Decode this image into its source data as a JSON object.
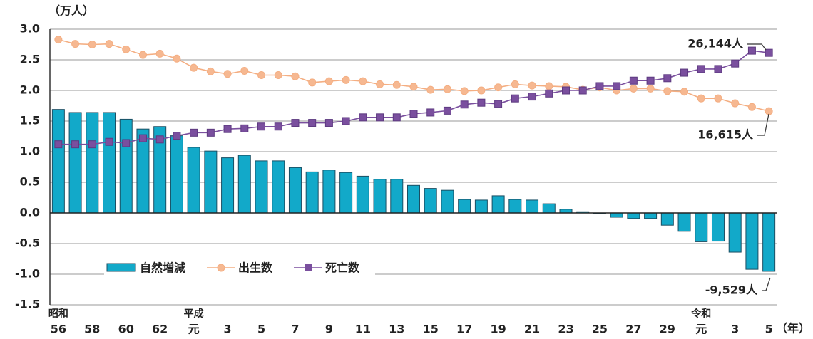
{
  "chart_data": {
    "type": "bar",
    "y_axis_label": "（万人）",
    "x_axis_label": "（年）",
    "categories": [
      "56",
      null,
      "58",
      null,
      "60",
      null,
      "62",
      null,
      "元",
      null,
      "3",
      null,
      "5",
      null,
      "7",
      null,
      "9",
      null,
      "11",
      null,
      "13",
      null,
      "15",
      null,
      "17",
      null,
      "19",
      null,
      "21",
      null,
      "23",
      null,
      "25",
      null,
      "27",
      null,
      "29",
      null,
      "元",
      null,
      "3",
      null,
      "5"
    ],
    "era_labels": [
      "昭和",
      null,
      null,
      null,
      null,
      null,
      null,
      null,
      "平成",
      null,
      null,
      null,
      null,
      null,
      null,
      null,
      null,
      null,
      null,
      null,
      null,
      null,
      null,
      null,
      null,
      null,
      null,
      null,
      null,
      null,
      null,
      null,
      null,
      null,
      null,
      null,
      null,
      null,
      "令和",
      null,
      null,
      null,
      null
    ],
    "ylim": [
      -1.5,
      3.0
    ],
    "yticks": [
      {
        "value": 3,
        "label": "3.0"
      },
      2.5,
      {
        "value": 2,
        "label": "2.0"
      },
      1.5,
      {
        "value": 1,
        "label": "1.0"
      },
      0.5,
      {
        "value": 0,
        "label": "0.0"
      },
      -0.5,
      {
        "value": -1,
        "label": "-1.0"
      },
      -1.5
    ],
    "grid": true,
    "series": [
      {
        "name": "自然増減",
        "type": "bar",
        "color": "#12a9c9",
        "values": [
          1.69,
          1.64,
          1.64,
          1.64,
          1.53,
          1.37,
          1.41,
          1.26,
          1.07,
          1.01,
          0.9,
          0.94,
          0.85,
          0.85,
          0.74,
          0.67,
          0.7,
          0.66,
          0.6,
          0.55,
          0.55,
          0.45,
          0.4,
          0.37,
          0.22,
          0.21,
          0.28,
          0.22,
          0.21,
          0.15,
          0.06,
          0.02,
          -0.01,
          -0.07,
          -0.09,
          -0.09,
          -0.2,
          -0.3,
          -0.47,
          -0.46,
          -0.64,
          -0.92,
          -0.9529
        ],
        "value_labels": [
          null,
          null,
          null,
          null,
          null,
          null,
          null,
          null,
          null,
          null,
          null,
          null,
          null,
          null,
          null,
          null,
          null,
          null,
          null,
          null,
          null,
          null,
          null,
          null,
          null,
          null,
          null,
          null,
          null,
          null,
          null,
          null,
          null,
          null,
          null,
          null,
          null,
          null,
          null,
          null,
          null,
          null,
          "-9,529人"
        ]
      },
      {
        "name": "出生数",
        "type": "line",
        "color": "#f4ae82",
        "values": [
          2.83,
          2.76,
          2.75,
          2.76,
          2.67,
          2.58,
          2.6,
          2.52,
          2.37,
          2.31,
          2.27,
          2.32,
          2.25,
          2.25,
          2.23,
          2.13,
          2.15,
          2.17,
          2.15,
          2.1,
          2.09,
          2.06,
          2.01,
          2.02,
          1.99,
          2.0,
          2.05,
          2.1,
          2.08,
          2.07,
          2.06,
          2.01,
          2.05,
          2.0,
          2.03,
          2.03,
          1.99,
          1.98,
          1.87,
          1.87,
          1.79,
          1.73,
          1.6615
        ],
        "value_labels": [
          null,
          null,
          null,
          null,
          null,
          null,
          null,
          null,
          null,
          null,
          null,
          null,
          null,
          null,
          null,
          null,
          null,
          null,
          null,
          null,
          null,
          null,
          null,
          null,
          null,
          null,
          null,
          null,
          null,
          null,
          null,
          null,
          null,
          null,
          null,
          null,
          null,
          null,
          null,
          null,
          null,
          null,
          "16,615人"
        ]
      },
      {
        "name": "死亡数",
        "type": "line",
        "color": "#7a4f9e",
        "values": [
          1.12,
          1.12,
          1.12,
          1.16,
          1.14,
          1.22,
          1.2,
          1.26,
          1.31,
          1.31,
          1.37,
          1.38,
          1.41,
          1.41,
          1.47,
          1.47,
          1.47,
          1.5,
          1.56,
          1.56,
          1.56,
          1.62,
          1.64,
          1.67,
          1.77,
          1.8,
          1.78,
          1.87,
          1.9,
          1.95,
          2.0,
          2.0,
          2.07,
          2.07,
          2.16,
          2.16,
          2.2,
          2.29,
          2.35,
          2.35,
          2.44,
          2.65,
          2.6144
        ],
        "value_labels": [
          null,
          null,
          null,
          null,
          null,
          null,
          null,
          null,
          null,
          null,
          null,
          null,
          null,
          null,
          null,
          null,
          null,
          null,
          null,
          null,
          null,
          null,
          null,
          null,
          null,
          null,
          null,
          null,
          null,
          null,
          null,
          null,
          null,
          null,
          null,
          null,
          null,
          null,
          null,
          null,
          null,
          null,
          "26,144人"
        ]
      }
    ]
  }
}
